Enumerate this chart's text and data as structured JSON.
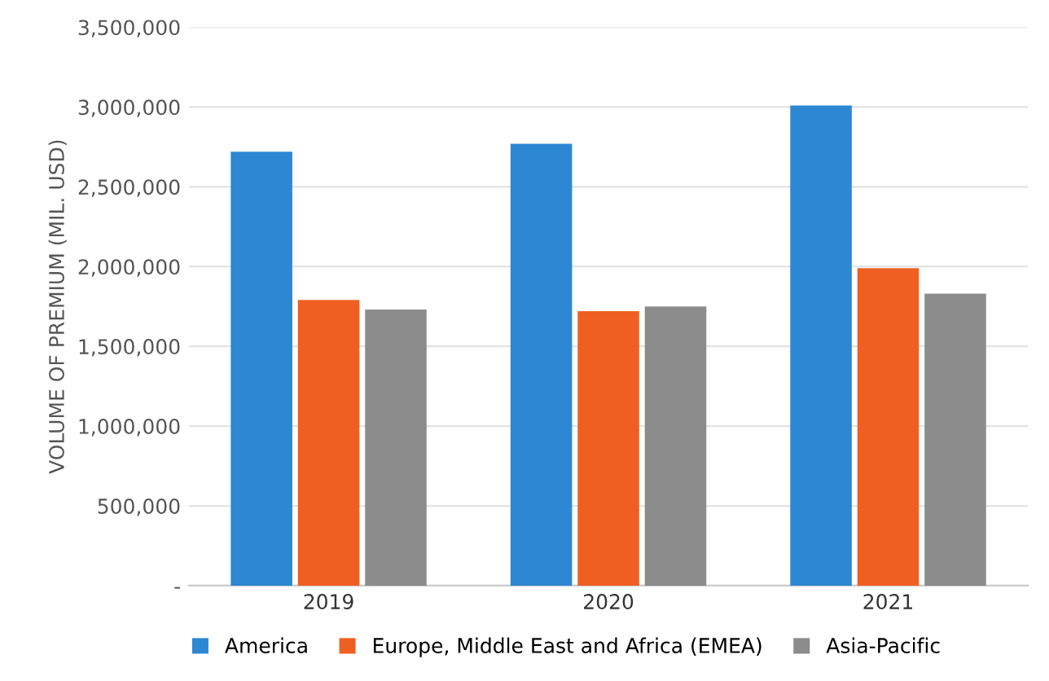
{
  "chart_data": {
    "type": "bar",
    "ylabel": "VOLUME OF PREMIUM (MIL. USD)",
    "categories": [
      "2019",
      "2020",
      "2021"
    ],
    "series": [
      {
        "name": "America",
        "color": "#2e87d3",
        "values": [
          2720000,
          2770000,
          3010000
        ]
      },
      {
        "name": "Europe, Middle East and Africa (EMEA)",
        "color": "#f05f22",
        "values": [
          1790000,
          1720000,
          1990000
        ]
      },
      {
        "name": "Asia-Pacific",
        "color": "#8c8c8c",
        "values": [
          1730000,
          1750000,
          1830000
        ]
      }
    ],
    "ylim": [
      0,
      3500000
    ],
    "yticks": [
      {
        "value": 0,
        "label": "-"
      },
      {
        "value": 500000,
        "label": "500,000"
      },
      {
        "value": 1000000,
        "label": "1,000,000"
      },
      {
        "value": 1500000,
        "label": "1,500,000"
      },
      {
        "value": 2000000,
        "label": "2,000,000"
      },
      {
        "value": 2500000,
        "label": "2,500,000"
      },
      {
        "value": 3000000,
        "label": "3,000,000"
      },
      {
        "value": 3500000,
        "label": "3,500,000"
      }
    ],
    "grid": "y",
    "legend": "bottom"
  }
}
